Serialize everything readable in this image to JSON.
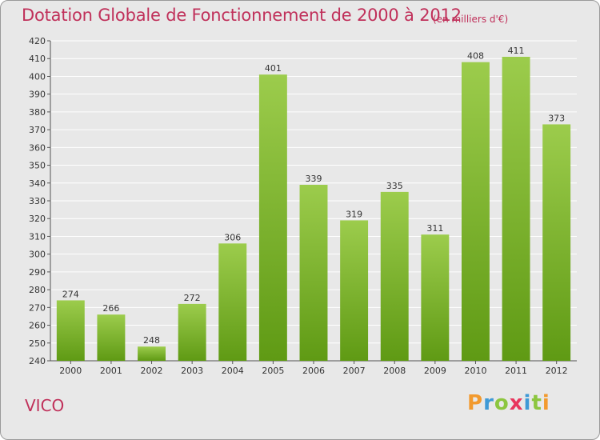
{
  "header": {
    "title": "Dotation Globale de Fonctionnement de 2000 à 2012",
    "subtitle": "(en milliers d'€)"
  },
  "footer": {
    "commune": "VICO",
    "logo_letters": [
      "P",
      "r",
      "o",
      "x",
      "i",
      "t",
      "i"
    ],
    "logo_colors": [
      "#f29a2e",
      "#3f9ad6",
      "#8cc63f",
      "#e8365d",
      "#3f9ad6",
      "#8cc63f",
      "#f29a2e"
    ]
  },
  "chart_data": {
    "type": "bar",
    "categories": [
      "2000",
      "2001",
      "2002",
      "2003",
      "2004",
      "2005",
      "2006",
      "2007",
      "2008",
      "2009",
      "2010",
      "2011",
      "2012"
    ],
    "values": [
      274,
      266,
      248,
      272,
      306,
      401,
      339,
      319,
      335,
      311,
      408,
      411,
      373
    ],
    "ylim": [
      240,
      420
    ],
    "yticks": [
      240,
      250,
      260,
      270,
      280,
      290,
      300,
      310,
      320,
      330,
      340,
      350,
      360,
      370,
      380,
      390,
      400,
      410,
      420
    ],
    "grid": true,
    "data_labels": true,
    "bar_color_top": "#9ccc4c",
    "bar_color_bottom": "#5f9a14",
    "grid_color": "#ffffff"
  }
}
